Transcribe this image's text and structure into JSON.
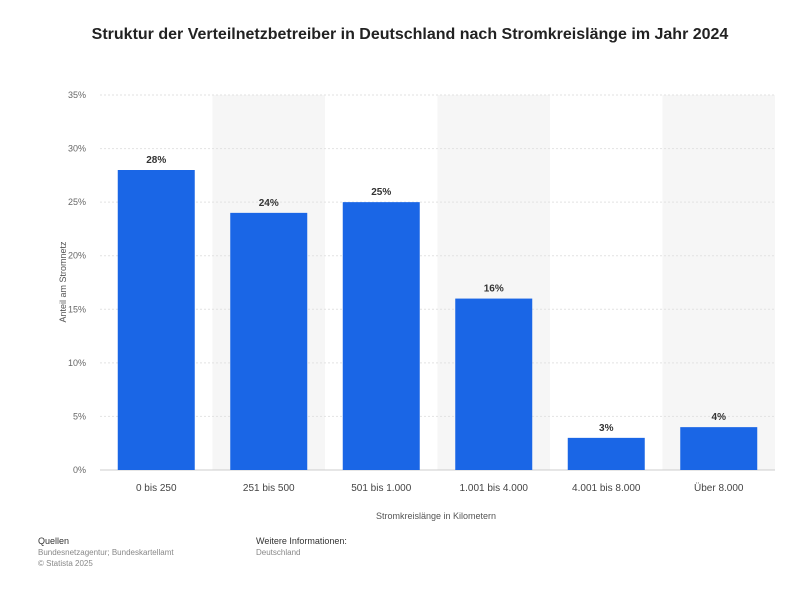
{
  "chart_data": {
    "type": "bar",
    "title": "Struktur der Verteilnetzbetreiber in Deutschland nach Stromkreislänge im Jahr 2024",
    "categories": [
      "0 bis 250",
      "251 bis 500",
      "501 bis 1.000",
      "1.001 bis 4.000",
      "4.001 bis 8.000",
      "Über 8.000"
    ],
    "values": [
      28,
      24,
      25,
      16,
      3,
      4
    ],
    "data_labels": [
      "28%",
      "24%",
      "25%",
      "16%",
      "3%",
      "4%"
    ],
    "xlabel": "Stromkreislänge in Kilometern",
    "ylabel": "Anteil am Stromnetz",
    "ylim": [
      0,
      35
    ],
    "yticks": [
      0,
      5,
      10,
      15,
      20,
      25,
      30,
      35
    ],
    "ytick_labels": [
      "0%",
      "5%",
      "10%",
      "15%",
      "20%",
      "25%",
      "30%",
      "35%"
    ],
    "grid": true,
    "bar_color": "#1a66e6"
  },
  "footer": {
    "sources_heading": "Quellen",
    "sources_text": "Bundesnetzagentur; Bundeskartellamt",
    "copyright": "© Statista 2025",
    "info_heading": "Weitere Informationen:",
    "info_text": "Deutschland"
  }
}
